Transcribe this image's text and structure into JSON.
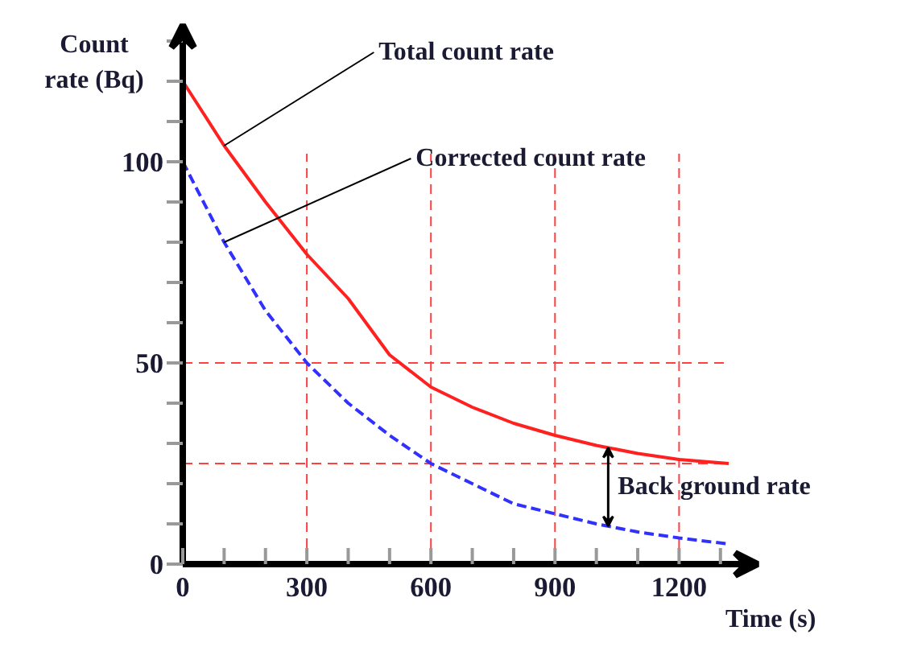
{
  "chart_data": {
    "type": "line",
    "xlabel": "Time (s)",
    "ylabel": "Count rate (Bq)",
    "x": [
      0,
      100,
      200,
      300,
      400,
      500,
      600,
      700,
      800,
      900,
      1000,
      1100,
      1200,
      1320
    ],
    "series": [
      {
        "name": "Total count rate",
        "color": "#ff2020",
        "line_style": "solid",
        "values": [
          120,
          104,
          90,
          77,
          66,
          52,
          44,
          39,
          35,
          32,
          29.5,
          27.5,
          26,
          25
        ]
      },
      {
        "name": "Corrected count rate",
        "color": "#3030ff",
        "line_style": "dashed",
        "values": [
          100,
          80,
          63,
          50,
          40,
          32,
          25,
          20,
          15,
          12.5,
          10,
          8,
          6.5,
          5
        ]
      }
    ],
    "xlim": [
      0,
      1390
    ],
    "ylim": [
      0,
      134
    ],
    "xticks": [
      0,
      {
        "value": 100,
        "label": null
      },
      {
        "value": 200,
        "label": null
      },
      300,
      {
        "value": 400,
        "label": null
      },
      {
        "value": 500,
        "label": null
      },
      600,
      {
        "value": 700,
        "label": null
      },
      {
        "value": 800,
        "label": null
      },
      900,
      {
        "value": 1000,
        "label": null
      },
      {
        "value": 1100,
        "label": null
      },
      1200,
      {
        "value": 1300,
        "label": null
      }
    ],
    "yticks": [
      0,
      {
        "value": 10,
        "label": null
      },
      {
        "value": 20,
        "label": null
      },
      {
        "value": 30,
        "label": null
      },
      {
        "value": 40,
        "label": null
      },
      50,
      {
        "value": 60,
        "label": null
      },
      {
        "value": 70,
        "label": null
      },
      {
        "value": 80,
        "label": null
      },
      {
        "value": 90,
        "label": null
      },
      100,
      {
        "value": 110,
        "label": null
      },
      {
        "value": 120,
        "label": null
      },
      {
        "value": 130,
        "label": null
      }
    ],
    "ref_lines": [
      {
        "axis": "y",
        "value": 50,
        "color": "#ff4040",
        "line_style": "dashed"
      },
      {
        "axis": "y",
        "value": 25,
        "color": "#ff4040",
        "line_style": "dashed"
      },
      {
        "axis": "x",
        "value": 300,
        "color": "#ff4040",
        "line_style": "dashed"
      },
      {
        "axis": "x",
        "value": 600,
        "color": "#ff4040",
        "line_style": "dashed"
      },
      {
        "axis": "x",
        "value": 900,
        "color": "#ff4040",
        "line_style": "dashed"
      },
      {
        "axis": "x",
        "value": 1200,
        "color": "#ff4040",
        "line_style": "dashed"
      }
    ],
    "annotations": [
      "Back ground rate"
    ],
    "grid": false,
    "legend": false,
    "marker": "none"
  }
}
